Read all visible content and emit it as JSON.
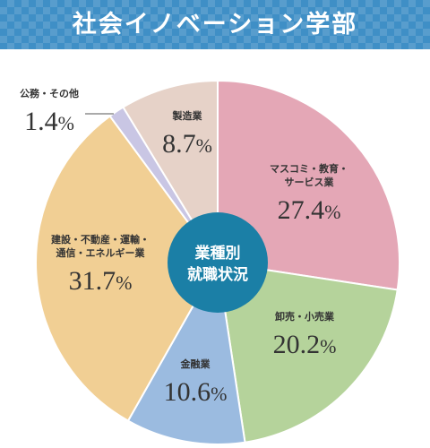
{
  "header": {
    "title": "社会イノベーション学部",
    "bg_color": "#3f8fc6"
  },
  "chart_data": {
    "type": "pie",
    "title": "社会イノベーション学部",
    "center_label": [
      "業種別",
      "就職状況"
    ],
    "center_color": "#1b7fa6",
    "unit": "%",
    "slices": [
      {
        "label": [
          "マスコミ・教育・",
          "サービス業"
        ],
        "value": 27.4,
        "display": "27.4",
        "color": "#e4a7b6"
      },
      {
        "label": [
          "卸売・小売業"
        ],
        "value": 20.2,
        "display": "20.2",
        "color": "#b5d39b"
      },
      {
        "label": [
          "金融業"
        ],
        "value": 10.6,
        "display": "10.6",
        "color": "#9bbbe0"
      },
      {
        "label": [
          "建設・不動産・運輸・",
          "通信・エネルギー業"
        ],
        "value": 31.7,
        "display": "31.7",
        "color": "#f1cf94"
      },
      {
        "label": [
          "公務・その他"
        ],
        "value": 1.4,
        "display": "1.4",
        "color": "#c9c6e4"
      },
      {
        "label": [
          "製造業"
        ],
        "value": 8.7,
        "display": "8.7",
        "color": "#e6d2c8"
      }
    ]
  }
}
